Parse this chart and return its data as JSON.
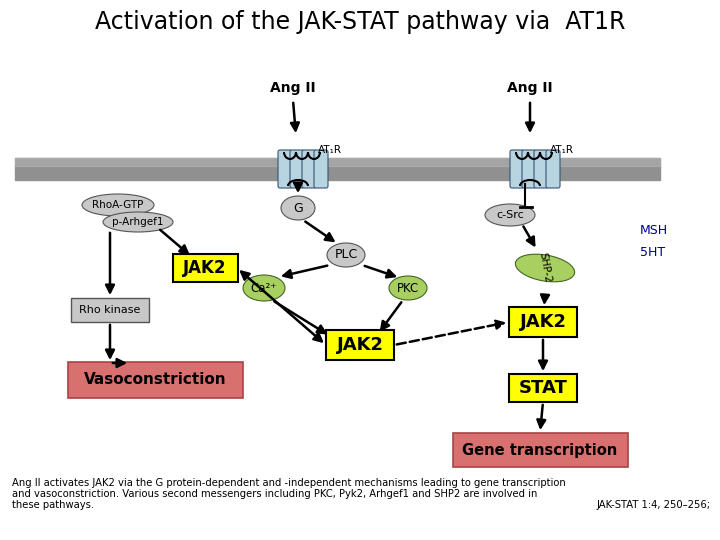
{
  "title": "Activation of the JAK-STAT pathway via  AT1R",
  "title_fontsize": 17,
  "caption_line1": "Ang II activates JAK2 via the G protein-dependent and -independent mechanisms leading to gene transcription",
  "caption_line2": "and vasoconstriction. Various second messengers including PKC, Pyk2, Arhgef1 and SHP2 are involved in",
  "caption_line3": "these pathways.",
  "citation": "JAK-STAT 1:4, 250–256;",
  "caption_fontsize": 7.2,
  "bg_color": "#ffffff",
  "membrane_color": "#909090",
  "receptor_color": "#b8d4e0",
  "yellow_box_color": "#ffff00",
  "pink_box_color": "#d97070",
  "gray_oval_color": "#c8c8c8",
  "green_oval_color": "#a8d060",
  "green_oval_light": "#c8e090",
  "MSH_5HT_color": "#000090"
}
